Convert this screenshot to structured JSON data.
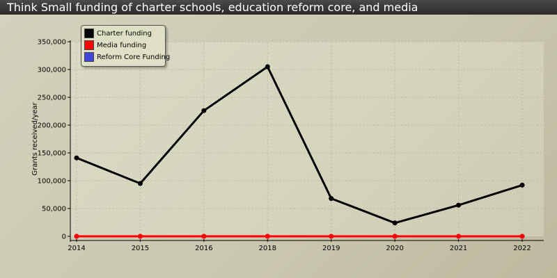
{
  "chart_data": {
    "type": "line",
    "title": "Think Small funding of charter schools, education reform core, and media",
    "ylabel": "Grants received/year",
    "xlabel": "",
    "categories": [
      "2014",
      "2015",
      "2016",
      "2018",
      "2019",
      "2020",
      "2021",
      "2022"
    ],
    "ylim": [
      0,
      350000
    ],
    "yticks": [
      0,
      50000,
      100000,
      150000,
      200000,
      250000,
      300000,
      350000
    ],
    "ytick_labels": [
      "0",
      "50,000",
      "100,000",
      "150,000",
      "200,000",
      "250,000",
      "300,000",
      "350,000"
    ],
    "grid": true,
    "legend_position": "top-left",
    "series": [
      {
        "name": "Charter funding",
        "color": "#000000",
        "values": [
          141000,
          95000,
          226000,
          305000,
          68000,
          24000,
          56000,
          92000
        ]
      },
      {
        "name": "Media funding",
        "color": "#ff0000",
        "values": [
          0,
          0,
          0,
          0,
          0,
          0,
          0,
          0
        ]
      },
      {
        "name": "Reform Core Funding",
        "color": "#4444dd",
        "values": [
          0,
          0,
          0,
          0,
          0,
          0,
          0,
          0
        ]
      }
    ]
  }
}
